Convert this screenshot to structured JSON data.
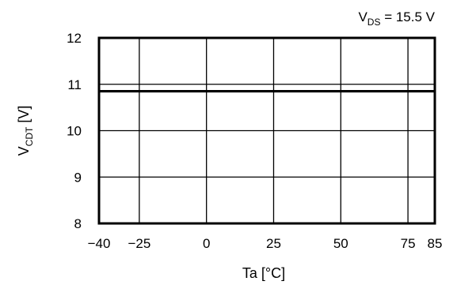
{
  "chart_data": {
    "type": "line",
    "title": "",
    "condition": {
      "main": "V",
      "sub": "DS",
      "rest": " = 15.5 V"
    },
    "xlabel": "Ta [°C]",
    "ylabel": {
      "main": "V",
      "sub": "CDT",
      "rest": " [V]"
    },
    "xlim": [
      -40,
      85
    ],
    "ylim": [
      8,
      12
    ],
    "x_ticks": [
      -40,
      -25,
      0,
      25,
      50,
      75,
      85
    ],
    "x_tick_labels": [
      "−40",
      "−25",
      "0",
      "25",
      "50",
      "75",
      "85"
    ],
    "y_ticks": [
      8,
      9,
      10,
      11,
      12
    ],
    "y_tick_labels": [
      "8",
      "9",
      "10",
      "11",
      "12"
    ],
    "x_gridlines": [
      -25,
      0,
      25,
      50,
      75
    ],
    "y_gridlines": [
      9,
      10,
      11
    ],
    "grid": true,
    "legend": "none",
    "series": [
      {
        "x": [
          -40,
          85
        ],
        "values": [
          10.85,
          10.85
        ],
        "color": "#000000"
      }
    ]
  }
}
